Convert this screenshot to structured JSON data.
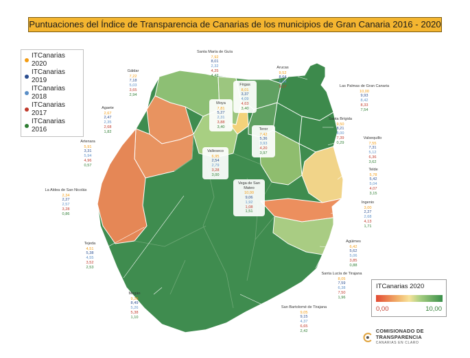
{
  "title": "Puntuaciones del Índice de Transparencia de Canarias de los municipios de Gran Canaria 2016 - 2020",
  "legend": [
    {
      "label": "ITCanarias 2020",
      "color": "#f39c12"
    },
    {
      "label": "ITCanarias 2019",
      "color": "#2a4d8f"
    },
    {
      "label": "ITCanarias 2018",
      "color": "#5b8fc7"
    },
    {
      "label": "ITCanarias 2017",
      "color": "#c0392b"
    },
    {
      "label": "ITCanarias 2016",
      "color": "#2e7d32"
    }
  ],
  "municipalities": [
    {
      "name": "Santa María de Guía",
      "values": [
        "7,92",
        "8,01",
        "2,32",
        "4,25",
        "4,42"
      ]
    },
    {
      "name": "Gáldar",
      "values": [
        "7,22",
        "7,18",
        "5,03",
        "3,65",
        "2,94"
      ]
    },
    {
      "name": "Arucas",
      "values": [
        "9,52",
        "8,64",
        "6,84",
        "9,17",
        ""
      ]
    },
    {
      "name": "Firgas",
      "values": [
        "8,01",
        "3,37",
        "4,09",
        "4,63",
        "3,40"
      ]
    },
    {
      "name": "Moya",
      "values": [
        "7,81",
        "5,27",
        "2,31",
        "3,88",
        "3,40"
      ]
    },
    {
      "name": "Las Palmas de Gran Canaria",
      "values": [
        "10,00",
        "9,93",
        "8,42",
        "8,33",
        "7,54"
      ]
    },
    {
      "name": "Agaete",
      "values": [
        "2,67",
        "2,47",
        "2,35",
        "2,68",
        "1,82"
      ]
    },
    {
      "name": "Teror",
      "values": [
        "7,42",
        "5,36",
        "3,93",
        "4,20",
        "3,97"
      ]
    },
    {
      "name": "Santa Brígida",
      "values": [
        "9,50",
        "8,21",
        "8,00",
        "7,39",
        "0,29"
      ]
    },
    {
      "name": "Valsequillo",
      "values": [
        "7,55",
        "7,31",
        "5,12",
        "6,36",
        "3,62"
      ]
    },
    {
      "name": "Artenara",
      "values": [
        "5,91",
        "3,31",
        "5,94",
        "4,96",
        "0,57"
      ]
    },
    {
      "name": "Valleseco",
      "values": [
        "6,95",
        "2,54",
        "2,79",
        "3,28",
        "3,00"
      ]
    },
    {
      "name": "Telde",
      "values": [
        "5,78",
        "5,42",
        "5,04",
        "4,07",
        "3,15"
      ]
    },
    {
      "name": "Vega de San Mateo",
      "values": [
        "10,00",
        "9,06",
        "1,92",
        "1,08",
        "1,51"
      ]
    },
    {
      "name": "La Aldea de San Nicolás",
      "values": [
        "2,34",
        "2,27",
        "2,57",
        "3,28",
        "0,86"
      ]
    },
    {
      "name": "Ingenio",
      "values": [
        "3,00",
        "2,27",
        "2,68",
        "4,13",
        "1,71"
      ]
    },
    {
      "name": "Tejeda",
      "values": [
        "4,51",
        "5,38",
        "4,55",
        "3,52",
        "2,53"
      ]
    },
    {
      "name": "Agüimes",
      "values": [
        "6,42",
        "5,62",
        "5,06",
        "3,85",
        "0,88"
      ]
    },
    {
      "name": "Santa Lucía de Tirajana",
      "values": [
        "8,05",
        "7,59",
        "6,38",
        "7,50",
        "1,96"
      ]
    },
    {
      "name": "Mogán",
      "values": [
        "9,26",
        "8,49",
        "5,26",
        "5,38",
        "1,10"
      ]
    },
    {
      "name": "San Bartolomé de Tirajana",
      "values": [
        "9,05",
        "9,15",
        "4,37",
        "6,65",
        "2,42"
      ]
    }
  ],
  "scale": {
    "title": "ITCanarias 2020",
    "min": "0,00",
    "max": "10,00"
  },
  "logo": {
    "line1": "COMISIONADO DE TRANSPARENCIA",
    "line2": "CANARIAS EN CLARO"
  }
}
